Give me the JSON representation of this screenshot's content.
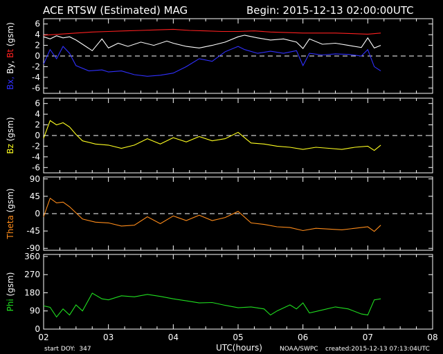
{
  "header": {
    "title": "ACE RTSW (Estimated) MAG",
    "begin": "Begin: 2015-12-13 02:00:00UTC"
  },
  "footer": {
    "start_doy": "start DOY:  347",
    "xlabel": "UTC(hours)",
    "source": "NOAA/SWPC",
    "created": "created:2015-12-13 07:13:04UTC"
  },
  "colors": {
    "bt": "#ff2020",
    "bx": "#3030ff",
    "by": "#ffffff",
    "bz": "#ffff20",
    "theta": "#ff8c1a",
    "phi": "#20e020",
    "axes": "#ffffff"
  },
  "chart_data": [
    {
      "type": "line",
      "ylabel_parts": [
        {
          "text": "Bx,",
          "color": "#3030ff"
        },
        {
          "text": " By,",
          "color": "#ffffff"
        },
        {
          "text": " Bt",
          "color": "#ff2020"
        },
        {
          "text": "  (gsm)",
          "color": "#ffffff"
        }
      ],
      "ylim": [
        -7,
        7
      ],
      "yticks": [
        6,
        4,
        2,
        0,
        -2,
        -4,
        -6
      ],
      "zero_line": 0,
      "series": [
        {
          "name": "Bt",
          "color": "#ff2020",
          "x": [
            2.0,
            2.25,
            2.5,
            2.75,
            3.0,
            3.25,
            3.5,
            3.75,
            4.0,
            4.25,
            4.5,
            4.75,
            5.0,
            5.25,
            5.5,
            5.75,
            6.0,
            6.25,
            6.5,
            6.75,
            7.0,
            7.2
          ],
          "y": [
            3.9,
            4.1,
            4.3,
            4.5,
            4.6,
            4.7,
            4.8,
            4.9,
            5.0,
            4.8,
            4.7,
            4.6,
            4.6,
            4.7,
            4.5,
            4.4,
            4.3,
            4.3,
            4.3,
            4.2,
            4.1,
            4.3
          ]
        },
        {
          "name": "By",
          "color": "#ffffff",
          "x": [
            2.0,
            2.1,
            2.2,
            2.3,
            2.4,
            2.5,
            2.6,
            2.75,
            2.9,
            3.0,
            3.15,
            3.3,
            3.5,
            3.7,
            3.9,
            4.0,
            4.2,
            4.4,
            4.6,
            4.8,
            5.0,
            5.1,
            5.3,
            5.5,
            5.7,
            5.9,
            6.0,
            6.1,
            6.3,
            6.5,
            6.7,
            6.9,
            7.0,
            7.1,
            7.2
          ],
          "y": [
            3.6,
            3.2,
            3.8,
            3.4,
            3.6,
            3.0,
            2.2,
            1.0,
            3.2,
            1.5,
            2.4,
            1.8,
            2.6,
            2.0,
            2.8,
            2.4,
            1.8,
            1.5,
            2.0,
            2.6,
            3.6,
            3.9,
            3.4,
            3.0,
            3.2,
            2.6,
            1.4,
            3.2,
            2.2,
            2.4,
            2.0,
            1.6,
            3.4,
            1.5,
            2.0
          ]
        },
        {
          "name": "Bx",
          "color": "#3030ff",
          "x": [
            2.0,
            2.1,
            2.2,
            2.3,
            2.4,
            2.5,
            2.7,
            2.9,
            3.0,
            3.2,
            3.4,
            3.6,
            3.8,
            4.0,
            4.2,
            4.4,
            4.6,
            4.8,
            5.0,
            5.1,
            5.3,
            5.5,
            5.7,
            5.9,
            6.0,
            6.1,
            6.3,
            6.5,
            6.7,
            6.9,
            7.0,
            7.1,
            7.2
          ],
          "y": [
            -1.5,
            1.2,
            -0.5,
            1.8,
            0.5,
            -1.8,
            -2.8,
            -2.6,
            -3.0,
            -2.8,
            -3.5,
            -3.8,
            -3.6,
            -3.2,
            -2.0,
            -0.5,
            -1.0,
            0.8,
            1.8,
            1.2,
            0.5,
            0.9,
            0.5,
            1.0,
            -1.8,
            0.5,
            0.2,
            0.4,
            0.3,
            0.0,
            1.2,
            -2.0,
            -2.8
          ]
        }
      ]
    },
    {
      "type": "line",
      "ylabel_parts": [
        {
          "text": "Bz",
          "color": "#ffff20"
        },
        {
          "text": "  (gsm)",
          "color": "#ffffff"
        }
      ],
      "ylim": [
        -7,
        7
      ],
      "yticks": [
        6,
        4,
        2,
        0,
        -2,
        -4,
        -6
      ],
      "zero_line": 0,
      "series": [
        {
          "name": "Bz",
          "color": "#ffff20",
          "x": [
            2.0,
            2.1,
            2.2,
            2.3,
            2.4,
            2.5,
            2.6,
            2.8,
            3.0,
            3.2,
            3.4,
            3.6,
            3.8,
            4.0,
            4.2,
            4.4,
            4.6,
            4.8,
            5.0,
            5.2,
            5.4,
            5.6,
            5.8,
            6.0,
            6.2,
            6.4,
            6.6,
            6.8,
            7.0,
            7.1,
            7.2
          ],
          "y": [
            -0.5,
            2.8,
            2.0,
            2.4,
            1.6,
            0.2,
            -1.0,
            -1.6,
            -1.8,
            -2.4,
            -1.8,
            -0.6,
            -1.6,
            -0.4,
            -1.2,
            -0.2,
            -1.0,
            -0.6,
            0.6,
            -1.4,
            -1.6,
            -2.0,
            -2.2,
            -2.6,
            -2.2,
            -2.4,
            -2.6,
            -2.2,
            -2.0,
            -2.8,
            -1.8
          ]
        }
      ]
    },
    {
      "type": "line",
      "ylabel_parts": [
        {
          "text": "Theta",
          "color": "#ff8c1a"
        },
        {
          "text": "  (gsm)",
          "color": "#ffffff"
        }
      ],
      "ylim": [
        -95,
        95
      ],
      "yticks": [
        90,
        45,
        0,
        -45,
        -90
      ],
      "zero_line": 0,
      "series": [
        {
          "name": "Theta",
          "color": "#ff8c1a",
          "x": [
            2.0,
            2.1,
            2.2,
            2.3,
            2.4,
            2.5,
            2.6,
            2.8,
            3.0,
            3.2,
            3.4,
            3.6,
            3.8,
            4.0,
            4.2,
            4.4,
            4.6,
            4.8,
            5.0,
            5.2,
            5.4,
            5.6,
            5.8,
            6.0,
            6.2,
            6.4,
            6.6,
            6.8,
            7.0,
            7.1,
            7.2
          ],
          "y": [
            -8,
            40,
            28,
            30,
            18,
            2,
            -14,
            -22,
            -24,
            -32,
            -30,
            -8,
            -26,
            -6,
            -18,
            -4,
            -18,
            -10,
            6,
            -24,
            -28,
            -34,
            -36,
            -44,
            -38,
            -40,
            -42,
            -38,
            -34,
            -46,
            -30
          ]
        }
      ]
    },
    {
      "type": "line",
      "ylabel_parts": [
        {
          "text": "Phi",
          "color": "#20e020"
        },
        {
          "text": "  (gsm)",
          "color": "#ffffff"
        }
      ],
      "ylim": [
        0,
        370
      ],
      "yticks": [
        360,
        270,
        180,
        90,
        0
      ],
      "zero_line": null,
      "series": [
        {
          "name": "Phi",
          "color": "#20e020",
          "x": [
            2.0,
            2.1,
            2.2,
            2.3,
            2.4,
            2.5,
            2.6,
            2.75,
            2.9,
            3.0,
            3.2,
            3.4,
            3.6,
            3.8,
            4.0,
            4.2,
            4.4,
            4.6,
            4.8,
            5.0,
            5.2,
            5.4,
            5.5,
            5.6,
            5.8,
            5.9,
            6.0,
            6.1,
            6.3,
            6.5,
            6.7,
            6.9,
            7.0,
            7.1,
            7.2
          ],
          "y": [
            115,
            108,
            60,
            100,
            70,
            120,
            90,
            178,
            150,
            145,
            165,
            160,
            172,
            162,
            150,
            140,
            130,
            132,
            118,
            106,
            110,
            100,
            70,
            90,
            120,
            100,
            130,
            80,
            95,
            110,
            100,
            75,
            70,
            145,
            150
          ]
        }
      ]
    }
  ],
  "x_axis": {
    "range": [
      2,
      8
    ],
    "ticks": [
      "02",
      "03",
      "04",
      "05",
      "06",
      "07",
      "08"
    ]
  }
}
